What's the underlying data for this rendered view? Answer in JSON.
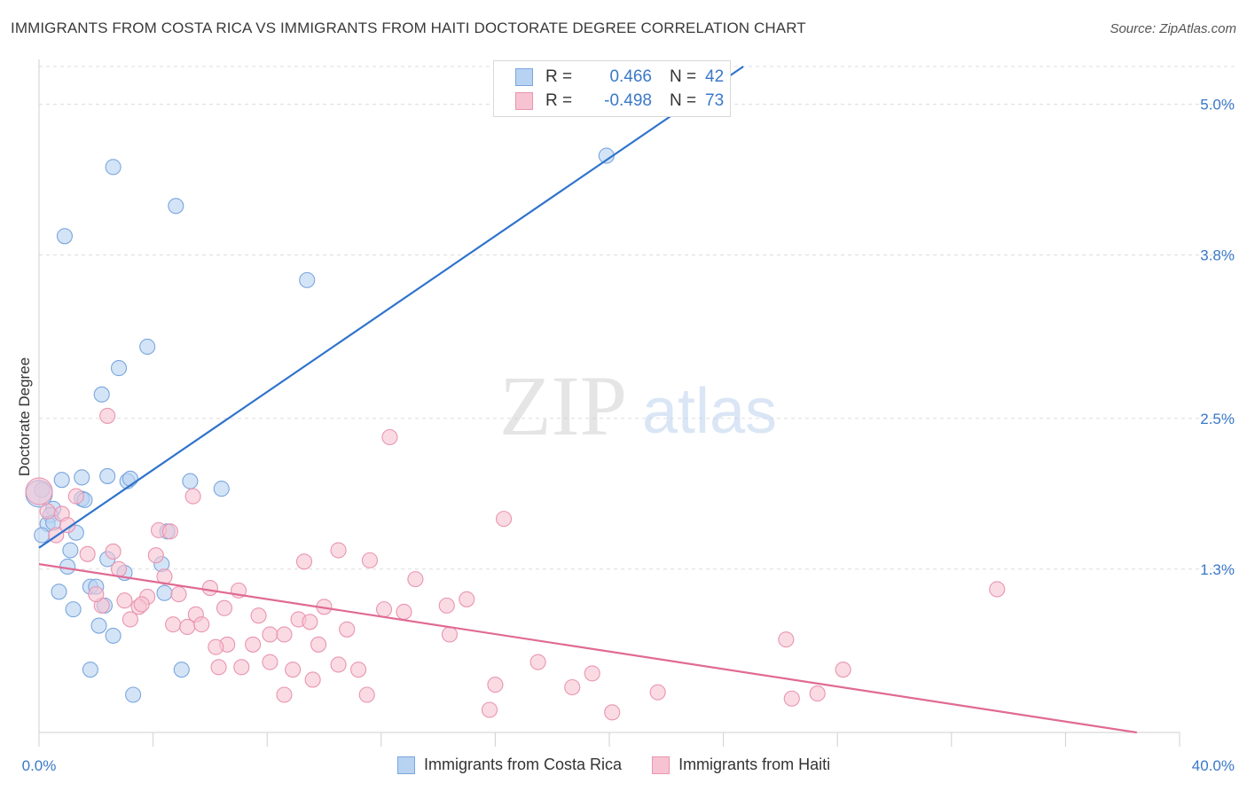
{
  "header": {
    "title": "IMMIGRANTS FROM COSTA RICA VS IMMIGRANTS FROM HAITI DOCTORATE DEGREE CORRELATION CHART",
    "source": "Source: ZipAtlas.com"
  },
  "watermark": {
    "zip": "ZIP",
    "atlas": "atlas"
  },
  "legend_box": {
    "rows": [
      {
        "r_label": "R =",
        "r_value": "0.466",
        "n_label": "N =",
        "n_value": "42"
      },
      {
        "r_label": "R =",
        "r_value": "-0.498",
        "n_label": "N =",
        "n_value": "73"
      }
    ]
  },
  "colors": {
    "blue_fill": "#b8d2f2",
    "blue_stroke": "#7aa6dd",
    "blue_line": "#2f74cc",
    "pink_fill": "#f7c3d2",
    "pink_stroke": "#e995b0",
    "pink_line": "#e06a93",
    "tick_text": "#3a78c9",
    "grid": "#dddddd"
  },
  "chart_data": {
    "type": "scatter",
    "title": "IMMIGRANTS FROM COSTA RICA VS IMMIGRANTS FROM HAITI DOCTORATE DEGREE CORRELATION CHART",
    "xlabel": "",
    "ylabel": "Doctorate Degree",
    "xlim": [
      0,
      40
    ],
    "ylim": [
      0,
      5.3
    ],
    "x_tick_labels": [
      "0.0%",
      "40.0%"
    ],
    "y_ticks": [
      1.3,
      2.5,
      3.8,
      5.0
    ],
    "y_tick_labels": [
      "1.3%",
      "2.5%",
      "3.8%",
      "5.0%"
    ],
    "grid": true,
    "legend_position": "bottom",
    "series": [
      {
        "name": "Immigrants from Costa Rica",
        "color": "#b8d2f2",
        "r": "0.466",
        "n": "42",
        "trend": {
          "x": [
            0,
            24.7
          ],
          "y": [
            1.47,
            5.3
          ]
        },
        "points": [
          {
            "x": 2.6,
            "y": 4.5
          },
          {
            "x": 4.8,
            "y": 4.19
          },
          {
            "x": 0.9,
            "y": 3.95
          },
          {
            "x": 19.9,
            "y": 4.59
          },
          {
            "x": 9.4,
            "y": 3.6
          },
          {
            "x": 3.8,
            "y": 3.07
          },
          {
            "x": 2.8,
            "y": 2.9
          },
          {
            "x": 2.2,
            "y": 2.69
          },
          {
            "x": 0.8,
            "y": 2.01
          },
          {
            "x": 1.5,
            "y": 2.03
          },
          {
            "x": 2.4,
            "y": 2.04
          },
          {
            "x": 3.1,
            "y": 2.0
          },
          {
            "x": 3.2,
            "y": 2.02
          },
          {
            "x": 5.3,
            "y": 2.0
          },
          {
            "x": 6.4,
            "y": 1.94
          },
          {
            "x": 0.1,
            "y": 1.93
          },
          {
            "x": 1.5,
            "y": 1.86
          },
          {
            "x": 1.6,
            "y": 1.85
          },
          {
            "x": 0.5,
            "y": 1.78
          },
          {
            "x": 0.4,
            "y": 1.73
          },
          {
            "x": 0.3,
            "y": 1.66
          },
          {
            "x": 0.5,
            "y": 1.67
          },
          {
            "x": 1.3,
            "y": 1.59
          },
          {
            "x": 0.1,
            "y": 1.57
          },
          {
            "x": 4.5,
            "y": 1.6
          },
          {
            "x": 1.1,
            "y": 1.45
          },
          {
            "x": 2.4,
            "y": 1.38
          },
          {
            "x": 4.3,
            "y": 1.34
          },
          {
            "x": 1.0,
            "y": 1.32
          },
          {
            "x": 3.0,
            "y": 1.27
          },
          {
            "x": 1.8,
            "y": 1.16
          },
          {
            "x": 2.0,
            "y": 1.16
          },
          {
            "x": 0.7,
            "y": 1.12
          },
          {
            "x": 4.4,
            "y": 1.11
          },
          {
            "x": 2.3,
            "y": 1.01
          },
          {
            "x": 1.2,
            "y": 0.98
          },
          {
            "x": 2.1,
            "y": 0.85
          },
          {
            "x": 2.6,
            "y": 0.77
          },
          {
            "x": 1.8,
            "y": 0.5
          },
          {
            "x": 5.0,
            "y": 0.5
          },
          {
            "x": 3.3,
            "y": 0.3
          },
          {
            "x": 0.0,
            "y": 1.9
          }
        ]
      },
      {
        "name": "Immigrants from Haiti",
        "color": "#f7c3d2",
        "r": "-0.498",
        "n": "73",
        "trend": {
          "x": [
            0,
            38.5
          ],
          "y": [
            1.34,
            0.0
          ]
        },
        "points": [
          {
            "x": 2.4,
            "y": 2.52
          },
          {
            "x": 12.3,
            "y": 2.35
          },
          {
            "x": 5.4,
            "y": 1.88
          },
          {
            "x": 1.3,
            "y": 1.88
          },
          {
            "x": 0.3,
            "y": 1.76
          },
          {
            "x": 0.8,
            "y": 1.74
          },
          {
            "x": 1.0,
            "y": 1.65
          },
          {
            "x": 0.6,
            "y": 1.57
          },
          {
            "x": 4.2,
            "y": 1.61
          },
          {
            "x": 4.6,
            "y": 1.6
          },
          {
            "x": 16.3,
            "y": 1.7
          },
          {
            "x": 1.7,
            "y": 1.42
          },
          {
            "x": 2.6,
            "y": 1.44
          },
          {
            "x": 10.5,
            "y": 1.45
          },
          {
            "x": 4.1,
            "y": 1.41
          },
          {
            "x": 9.3,
            "y": 1.36
          },
          {
            "x": 11.6,
            "y": 1.37
          },
          {
            "x": 2.8,
            "y": 1.3
          },
          {
            "x": 13.2,
            "y": 1.22
          },
          {
            "x": 4.4,
            "y": 1.24
          },
          {
            "x": 6.0,
            "y": 1.15
          },
          {
            "x": 7.0,
            "y": 1.13
          },
          {
            "x": 33.6,
            "y": 1.14
          },
          {
            "x": 3.8,
            "y": 1.08
          },
          {
            "x": 15.0,
            "y": 1.06
          },
          {
            "x": 2.2,
            "y": 1.01
          },
          {
            "x": 3.5,
            "y": 1.0
          },
          {
            "x": 6.5,
            "y": 0.99
          },
          {
            "x": 10.0,
            "y": 1.0
          },
          {
            "x": 14.3,
            "y": 1.01
          },
          {
            "x": 12.1,
            "y": 0.98
          },
          {
            "x": 5.5,
            "y": 0.94
          },
          {
            "x": 7.7,
            "y": 0.93
          },
          {
            "x": 12.8,
            "y": 0.96
          },
          {
            "x": 3.2,
            "y": 0.9
          },
          {
            "x": 9.1,
            "y": 0.9
          },
          {
            "x": 9.5,
            "y": 0.88
          },
          {
            "x": 4.7,
            "y": 0.86
          },
          {
            "x": 5.2,
            "y": 0.84
          },
          {
            "x": 5.7,
            "y": 0.86
          },
          {
            "x": 10.8,
            "y": 0.82
          },
          {
            "x": 8.1,
            "y": 0.78
          },
          {
            "x": 8.6,
            "y": 0.78
          },
          {
            "x": 14.4,
            "y": 0.78
          },
          {
            "x": 26.2,
            "y": 0.74
          },
          {
            "x": 6.6,
            "y": 0.7
          },
          {
            "x": 7.5,
            "y": 0.7
          },
          {
            "x": 9.8,
            "y": 0.7
          },
          {
            "x": 6.2,
            "y": 0.68
          },
          {
            "x": 17.5,
            "y": 0.56
          },
          {
            "x": 8.1,
            "y": 0.56
          },
          {
            "x": 10.5,
            "y": 0.54
          },
          {
            "x": 6.3,
            "y": 0.52
          },
          {
            "x": 7.1,
            "y": 0.52
          },
          {
            "x": 8.9,
            "y": 0.5
          },
          {
            "x": 11.2,
            "y": 0.5
          },
          {
            "x": 19.4,
            "y": 0.47
          },
          {
            "x": 28.2,
            "y": 0.5
          },
          {
            "x": 9.6,
            "y": 0.42
          },
          {
            "x": 16.0,
            "y": 0.38
          },
          {
            "x": 18.7,
            "y": 0.36
          },
          {
            "x": 8.6,
            "y": 0.3
          },
          {
            "x": 11.5,
            "y": 0.3
          },
          {
            "x": 21.7,
            "y": 0.32
          },
          {
            "x": 27.3,
            "y": 0.31
          },
          {
            "x": 26.4,
            "y": 0.27
          },
          {
            "x": 15.8,
            "y": 0.18
          },
          {
            "x": 20.1,
            "y": 0.16
          },
          {
            "x": 0.0,
            "y": 1.92
          },
          {
            "x": 3.0,
            "y": 1.05
          },
          {
            "x": 4.9,
            "y": 1.1
          },
          {
            "x": 2.0,
            "y": 1.1
          },
          {
            "x": 3.6,
            "y": 1.02
          }
        ]
      }
    ]
  },
  "bottom_legend": [
    {
      "label": "Immigrants from Costa Rica"
    },
    {
      "label": "Immigrants from Haiti"
    }
  ]
}
